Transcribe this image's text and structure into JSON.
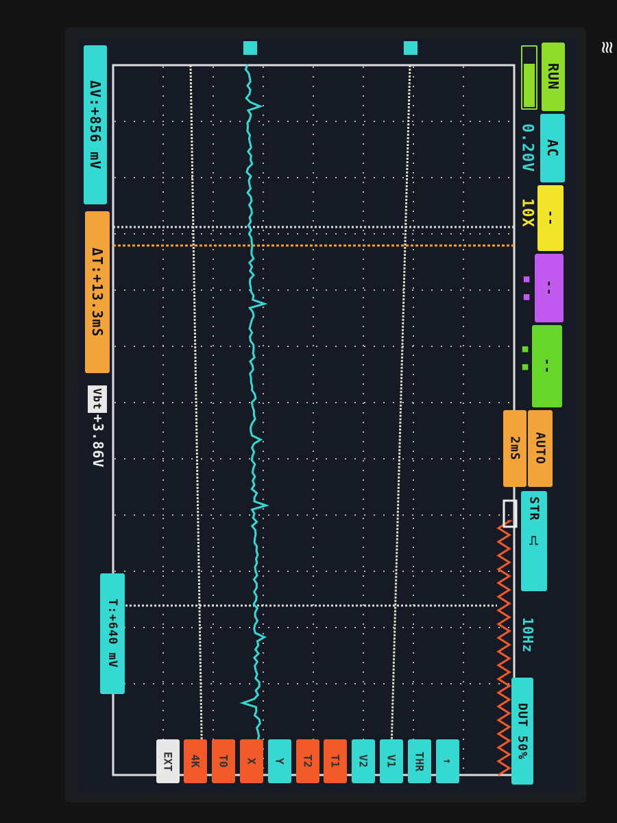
{
  "left_panel": {
    "delta_v": "ΔV:+856 mV",
    "delta_t": "ΔT:+13.3mS",
    "vbt_label": "Vbt",
    "vbt_value": "+3.86V",
    "trigger_level": "T:+640 mV"
  },
  "right_panel": {
    "run_state": "RUN",
    "coupling": "AC",
    "volts_div": "0.20V",
    "probe": "10X",
    "ch_yellow": "--",
    "ch_magenta": "--",
    "ch_green": "--",
    "mode_auto": "AUTO",
    "time_div": "2mS",
    "trigger_source": "STR",
    "trigger_edge": "rising-edge-icon",
    "frequency": "10Hz",
    "duty": "DUT 50%",
    "battery_level": 0.7
  },
  "bottom_buttons": [
    "EXT",
    "4K",
    "T0",
    "X",
    "Y",
    "T2",
    "T1",
    "V2",
    "V1",
    "THR",
    "↑"
  ],
  "colors": {
    "cyan": "#36d8d2",
    "orange": "#f2a33a",
    "yellow": "#f0e52a",
    "magenta": "#c35af0",
    "green": "#66d62a",
    "red": "#f25a2a",
    "white": "#e8e8e8",
    "run": "#8fdc2a"
  },
  "logo": "M"
}
